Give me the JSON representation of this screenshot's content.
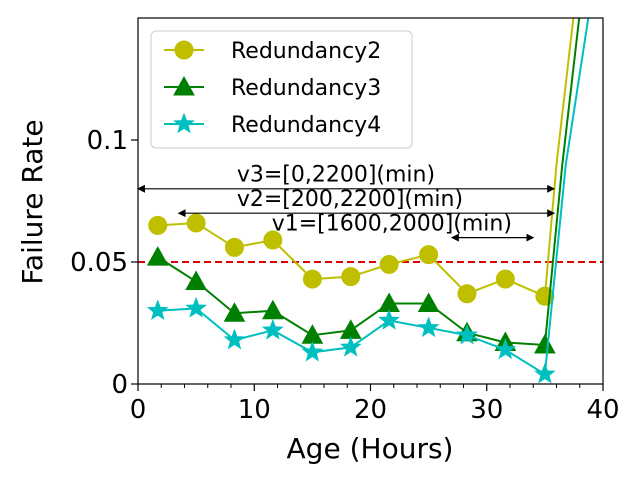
{
  "chart_data": {
    "type": "line",
    "title": "",
    "xlabel": "Age (Hours)",
    "ylabel": "Failure Rate",
    "xlim": [
      0,
      40
    ],
    "ylim": [
      0,
      0.15
    ],
    "x_ticks": [
      0,
      10,
      20,
      30,
      40
    ],
    "x_tick_labels": [
      "0",
      "10",
      "20",
      "30",
      "40"
    ],
    "y_ticks": [
      0,
      0.05,
      0.1
    ],
    "y_tick_labels": [
      "0",
      "0.05",
      "0.1"
    ],
    "grid": false,
    "legend_position": "top-left",
    "threshold": {
      "value": 0.05,
      "color": "#dd0000",
      "style": "dashed"
    },
    "series": [
      {
        "name": "Redundancy2",
        "color": "#bfbf00",
        "marker": "circle",
        "x": [
          1.7,
          5.0,
          8.3,
          11.6,
          15.0,
          18.3,
          21.6,
          25.0,
          28.3,
          31.6,
          35.0,
          36.0,
          37.5
        ],
        "y": [
          0.065,
          0.066,
          0.056,
          0.059,
          0.043,
          0.044,
          0.049,
          0.053,
          0.037,
          0.043,
          0.036,
          0.09,
          0.152
        ],
        "marker_count": 11
      },
      {
        "name": "Redundancy3",
        "color": "#008000",
        "marker": "triangle",
        "x": [
          1.7,
          5.0,
          8.3,
          11.6,
          15.0,
          18.3,
          21.6,
          25.0,
          28.3,
          31.6,
          35.0,
          36.5,
          38.0
        ],
        "y": [
          0.052,
          0.042,
          0.029,
          0.03,
          0.02,
          0.022,
          0.033,
          0.033,
          0.021,
          0.017,
          0.016,
          0.09,
          0.152
        ],
        "marker_count": 11
      },
      {
        "name": "Redundancy4",
        "color": "#00bfbf",
        "marker": "star",
        "x": [
          1.7,
          5.0,
          8.3,
          11.6,
          15.0,
          18.3,
          21.6,
          25.0,
          28.3,
          31.6,
          35.0,
          36.8,
          38.8
        ],
        "y": [
          0.03,
          0.031,
          0.018,
          0.022,
          0.013,
          0.015,
          0.026,
          0.023,
          0.02,
          0.014,
          0.004,
          0.09,
          0.152
        ],
        "marker_count": 11
      }
    ],
    "annotations": [
      {
        "label": "v3=[0,2200](min)",
        "x_start": 0,
        "x_end": 35.8,
        "y": 0.08,
        "text_x": 8.5,
        "text_y": 0.083
      },
      {
        "label": "v2=[200,2200](min)",
        "x_start": 3.5,
        "x_end": 35.8,
        "y": 0.07,
        "text_x": 8.5,
        "text_y": 0.073
      },
      {
        "label": "v1=[1600,2000](min)",
        "x_start": 27.0,
        "x_end": 34.0,
        "y": 0.06,
        "text_x": 11.5,
        "text_y": 0.063
      }
    ]
  }
}
